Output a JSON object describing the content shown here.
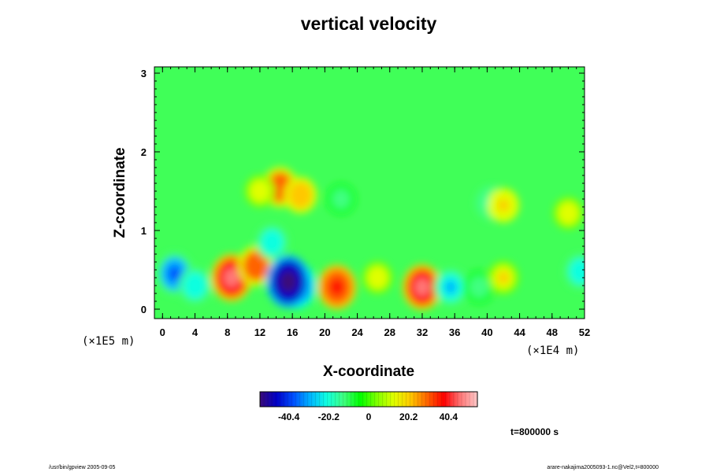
{
  "chart_data": {
    "type": "heatmap",
    "title": "vertical velocity",
    "xlabel": "X-coordinate",
    "ylabel": "Z-coordinate",
    "x_unit_label": "(×1E4 m)",
    "z_unit_label": "(×1E5 m)",
    "xlim": [
      -1,
      52
    ],
    "zlim": [
      -0.12,
      3.08
    ],
    "x_ticks": [
      "0",
      "4",
      "8",
      "12",
      "16",
      "20",
      "24",
      "28",
      "32",
      "36",
      "40",
      "44",
      "48",
      "52"
    ],
    "z_ticks": [
      "0",
      "1",
      "2",
      "3"
    ],
    "colorbar": {
      "range": [
        -55,
        55
      ],
      "tick_labels": [
        "-40.4",
        "-20.2",
        "0",
        "20.2",
        "40.4"
      ],
      "tick_values": [
        -40.4,
        -20.2,
        0,
        20.2,
        40.4
      ],
      "colors": [
        "#3a0a78",
        "#0000c8",
        "#0050ff",
        "#00b4ff",
        "#10ffe0",
        "#40ff80",
        "#00ff00",
        "#80ff00",
        "#e0ff00",
        "#ffc800",
        "#ff6400",
        "#ff0000",
        "#ff7878",
        "#ffc8c8"
      ]
    },
    "time_label": "t=800000 s",
    "features": [
      {
        "x": 1.5,
        "z": 0.45,
        "value": -34
      },
      {
        "x": 4.0,
        "z": 0.3,
        "value": -22
      },
      {
        "x": 8.5,
        "z": 0.4,
        "value": 44
      },
      {
        "x": 11.5,
        "z": 0.55,
        "value": 30
      },
      {
        "x": 13.5,
        "z": 0.85,
        "value": -20
      },
      {
        "x": 16.5,
        "z": 0.3,
        "value": -42
      },
      {
        "x": 15.5,
        "z": 0.35,
        "value": -55
      },
      {
        "x": 21.5,
        "z": 0.28,
        "value": 38
      },
      {
        "x": 26.5,
        "z": 0.4,
        "value": 14
      },
      {
        "x": 32.0,
        "z": 0.28,
        "value": 40
      },
      {
        "x": 35.5,
        "z": 0.28,
        "value": -24
      },
      {
        "x": 39.0,
        "z": 0.28,
        "value": -14
      },
      {
        "x": 42.0,
        "z": 0.4,
        "value": 16
      },
      {
        "x": 51.5,
        "z": 0.48,
        "value": -20
      },
      {
        "x": 14.5,
        "z": 1.55,
        "value": 30
      },
      {
        "x": 17.0,
        "z": 1.45,
        "value": 22
      },
      {
        "x": 12.0,
        "z": 1.5,
        "value": 14
      },
      {
        "x": 22.0,
        "z": 1.4,
        "value": -10
      },
      {
        "x": 40.5,
        "z": 1.35,
        "value": -18
      },
      {
        "x": 42.0,
        "z": 1.32,
        "value": 18
      },
      {
        "x": 50.0,
        "z": 1.22,
        "value": 14
      }
    ]
  },
  "footer": {
    "left": "/usr/bin/gpview 2005-09-05",
    "right": "arare-nakajima2005093-1.nc@Vel2,t=800000"
  }
}
